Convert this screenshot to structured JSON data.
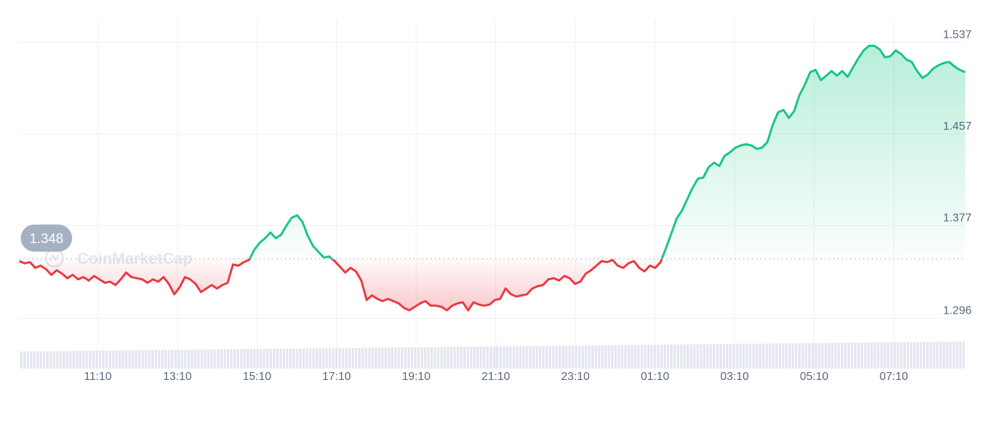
{
  "watermark": "CoinMarketCap",
  "colors": {
    "up": "#16c784",
    "down": "#ea3943",
    "grid": "#eef0f4",
    "baseline": "#c9ced8",
    "badge": "#a6b0c3"
  },
  "chart_data": {
    "type": "line",
    "baseline": 1.348,
    "current_price_label": "1.348",
    "ylim": [
      1.27,
      1.565
    ],
    "y_ticks": [
      {
        "value": 1.537,
        "label": "1.537"
      },
      {
        "value": 1.457,
        "label": "1.457"
      },
      {
        "value": 1.377,
        "label": "1.377"
      },
      {
        "value": 1.296,
        "label": "1.296"
      }
    ],
    "x_ticks": [
      "11:10",
      "13:10",
      "15:10",
      "17:10",
      "19:10",
      "21:10",
      "23:10",
      "01:10",
      "03:10",
      "05:10",
      "07:10"
    ],
    "series": [
      {
        "values": [
          1.346,
          1.344,
          1.345,
          1.34,
          1.342,
          1.339,
          1.334,
          1.338,
          1.335,
          1.331,
          1.334,
          1.33,
          1.332,
          1.329,
          1.333,
          1.33,
          1.327,
          1.328,
          1.325,
          1.33,
          1.336,
          1.332,
          1.331,
          1.33,
          1.327,
          1.33,
          1.328,
          1.332,
          1.326,
          1.317,
          1.323,
          1.332,
          1.33,
          1.326,
          1.319,
          1.322,
          1.325,
          1.322,
          1.325,
          1.327,
          1.343,
          1.342,
          1.345,
          1.347,
          1.356,
          1.362,
          1.366,
          1.371,
          1.366,
          1.369,
          1.377,
          1.384,
          1.386,
          1.38,
          1.368,
          1.359,
          1.354,
          1.349,
          1.35,
          1.346,
          1.341,
          1.336,
          1.34,
          1.337,
          1.329,
          1.312,
          1.316,
          1.313,
          1.311,
          1.313,
          1.311,
          1.309,
          1.305,
          1.303,
          1.306,
          1.309,
          1.311,
          1.307,
          1.307,
          1.306,
          1.303,
          1.307,
          1.309,
          1.31,
          1.303,
          1.31,
          1.308,
          1.307,
          1.308,
          1.312,
          1.313,
          1.322,
          1.317,
          1.315,
          1.316,
          1.317,
          1.322,
          1.324,
          1.325,
          1.33,
          1.331,
          1.329,
          1.333,
          1.331,
          1.326,
          1.328,
          1.335,
          1.338,
          1.342,
          1.346,
          1.345,
          1.347,
          1.342,
          1.34,
          1.344,
          1.346,
          1.34,
          1.337,
          1.342,
          1.34,
          1.345,
          1.357,
          1.37,
          1.383,
          1.39,
          1.4,
          1.41,
          1.418,
          1.419,
          1.428,
          1.432,
          1.429,
          1.438,
          1.441,
          1.445,
          1.447,
          1.448,
          1.447,
          1.444,
          1.445,
          1.45,
          1.465,
          1.476,
          1.478,
          1.471,
          1.477,
          1.491,
          1.5,
          1.511,
          1.513,
          1.504,
          1.508,
          1.512,
          1.508,
          1.512,
          1.507,
          1.515,
          1.523,
          1.53,
          1.534,
          1.534,
          1.531,
          1.524,
          1.525,
          1.53,
          1.527,
          1.522,
          1.52,
          1.512,
          1.506,
          1.509,
          1.514,
          1.517,
          1.519,
          1.52,
          1.516,
          1.513,
          1.511
        ]
      }
    ]
  }
}
